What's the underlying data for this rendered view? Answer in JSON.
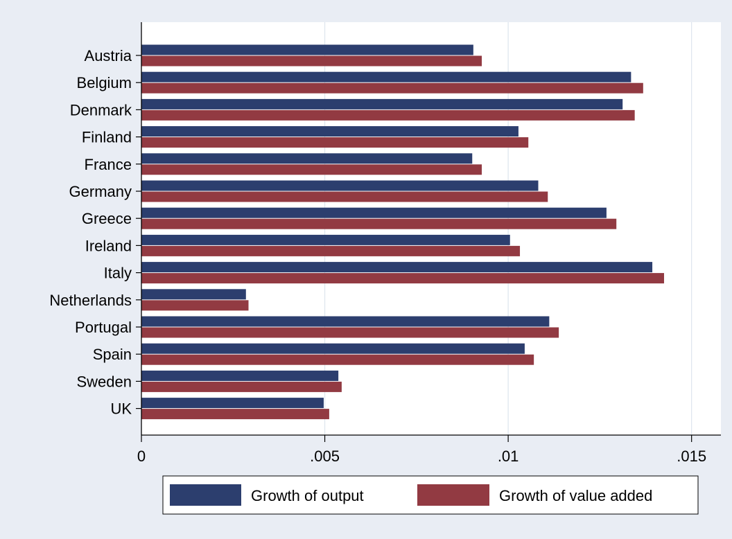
{
  "chart_data": {
    "type": "bar",
    "orientation": "horizontal",
    "title": "",
    "xlabel": "",
    "ylabel": "",
    "categories": [
      "Austria",
      "Belgium",
      "Denmark",
      "Finland",
      "France",
      "Germany",
      "Greece",
      "Ireland",
      "Italy",
      "Netherlands",
      "Portugal",
      "Spain",
      "Sweden",
      "UK"
    ],
    "series": [
      {
        "name": "Growth of output",
        "color": "#2c3e6e",
        "values": [
          0.00905,
          0.01335,
          0.01312,
          0.01028,
          0.00902,
          0.01082,
          0.01268,
          0.01005,
          0.01393,
          0.00285,
          0.01112,
          0.01045,
          0.00537,
          0.00497
        ]
      },
      {
        "name": "Growth of value added",
        "color": "#923a42",
        "values": [
          0.00928,
          0.01368,
          0.01345,
          0.01055,
          0.00928,
          0.01108,
          0.01295,
          0.01032,
          0.01425,
          0.00292,
          0.01138,
          0.0107,
          0.00546,
          0.00512
        ]
      }
    ],
    "xlim": [
      0,
      0.0158
    ],
    "xticks": [
      {
        "value": 0,
        "label": "0"
      },
      {
        "value": 0.005,
        "label": ".005"
      },
      {
        "value": 0.01,
        "label": ".01"
      },
      {
        "value": 0.015,
        "label": ".015"
      }
    ],
    "grid": true,
    "legend_position": "bottom",
    "plot_background": "#ffffff",
    "page_background": "#e9edf4",
    "grid_color": "#dde5ee"
  }
}
